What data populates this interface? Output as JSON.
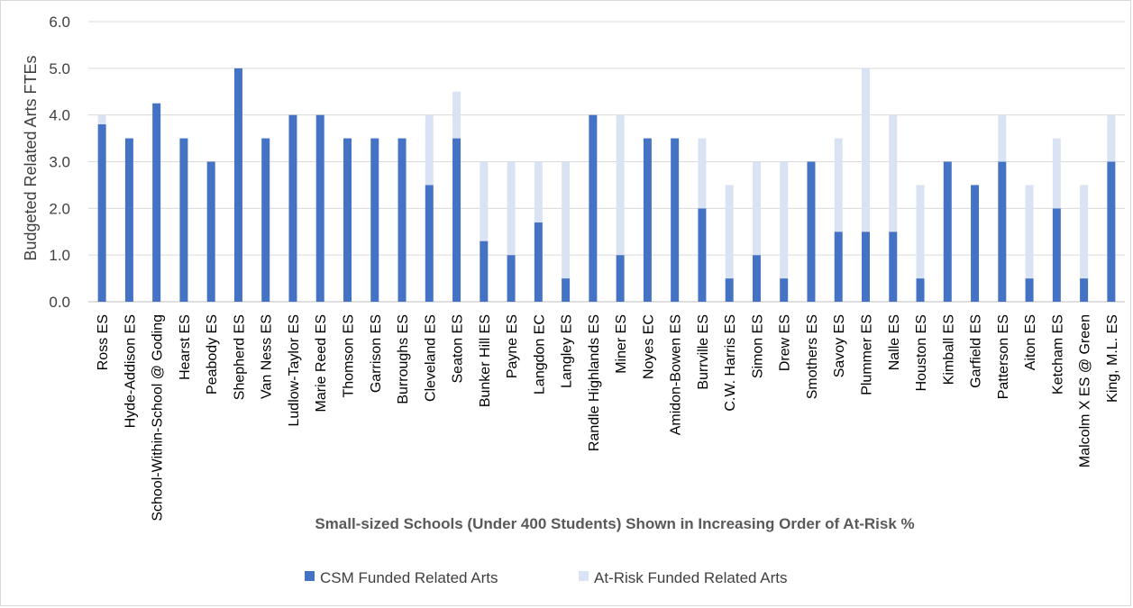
{
  "chart_data": {
    "type": "bar",
    "stacked": true,
    "title": "",
    "xlabel": "Small-sized Schools (Under 400 Students) Shown in Increasing Order of At-Risk %",
    "ylabel": "Budgeted Related Arts FTEs",
    "ylim": [
      0,
      6
    ],
    "yticks": [
      "0.0",
      "1.0",
      "2.0",
      "3.0",
      "4.0",
      "5.0",
      "6.0"
    ],
    "grid": true,
    "legend_position": "bottom",
    "categories": [
      "Ross ES",
      "Hyde-Addison ES",
      "School-Within-School @ Goding",
      "Hearst ES",
      "Peabody ES",
      "Shepherd ES",
      "Van Ness ES",
      "Ludlow-Taylor ES",
      "Marie Reed ES",
      "Thomson ES",
      "Garrison ES",
      "Burroughs ES",
      "Cleveland ES",
      "Seaton ES",
      "Bunker Hill ES",
      "Payne ES",
      "Langdon EC",
      "Langley ES",
      "Randle Highlands ES",
      "Miner ES",
      "Noyes EC",
      "Amidon-Bowen ES",
      "Burrville ES",
      "C.W. Harris ES",
      "Simon ES",
      "Drew ES",
      "Smothers ES",
      "Savoy ES",
      "Plummer ES",
      "Nalle ES",
      "Houston ES",
      "Kimball ES",
      "Garfield ES",
      "Patterson ES",
      "Aiton ES",
      "Ketcham ES",
      "Malcolm X ES @ Green",
      "King, M.L. ES"
    ],
    "series": [
      {
        "name": "CSM Funded Related Arts",
        "color": "#4472c4",
        "values": [
          3.8,
          3.5,
          4.25,
          3.5,
          3.0,
          5.0,
          3.5,
          4.0,
          4.0,
          3.5,
          3.5,
          3.5,
          2.5,
          3.5,
          1.3,
          1.0,
          1.7,
          0.5,
          4.0,
          1.0,
          3.5,
          3.5,
          2.0,
          0.5,
          1.0,
          0.5,
          3.0,
          1.5,
          1.5,
          1.5,
          0.5,
          3.0,
          2.5,
          3.0,
          0.5,
          2.0,
          0.5,
          3.0
        ]
      },
      {
        "name": "At-Risk Funded Related Arts",
        "color": "#dae3f3",
        "values": [
          0.2,
          0,
          0,
          0,
          0,
          0,
          0,
          0,
          0,
          0,
          0,
          0,
          1.5,
          1.0,
          1.7,
          2.0,
          1.3,
          2.5,
          0,
          3.0,
          0,
          0,
          1.5,
          2.0,
          2.0,
          2.5,
          0,
          2.0,
          3.5,
          2.5,
          2.0,
          0,
          0,
          1.0,
          2.0,
          1.5,
          2.0,
          1.0
        ]
      }
    ]
  }
}
